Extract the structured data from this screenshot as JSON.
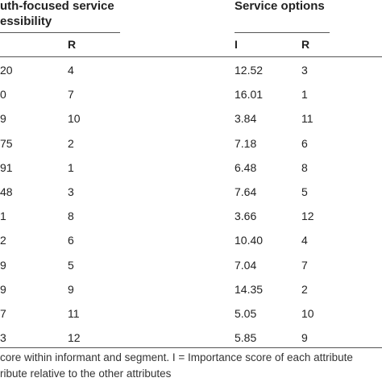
{
  "table": {
    "group_left": {
      "title_line1": "uth-focused service",
      "title_line2": "essibility",
      "col_i": "",
      "col_r": "R"
    },
    "group_right": {
      "title": "Service options",
      "col_i": "I",
      "col_r": "R"
    },
    "rows": [
      {
        "left_i": "20",
        "left_r": "4",
        "right_i": "12.52",
        "right_r": "3"
      },
      {
        "left_i": "0",
        "left_r": "7",
        "right_i": "16.01",
        "right_r": "1"
      },
      {
        "left_i": "9",
        "left_r": "10",
        "right_i": "3.84",
        "right_r": "11"
      },
      {
        "left_i": "75",
        "left_r": "2",
        "right_i": "7.18",
        "right_r": "6"
      },
      {
        "left_i": "91",
        "left_r": "1",
        "right_i": "6.48",
        "right_r": "8"
      },
      {
        "left_i": "48",
        "left_r": "3",
        "right_i": "7.64",
        "right_r": "5"
      },
      {
        "left_i": "1",
        "left_r": "8",
        "right_i": "3.66",
        "right_r": "12"
      },
      {
        "left_i": "2",
        "left_r": "6",
        "right_i": "10.40",
        "right_r": "4"
      },
      {
        "left_i": "9",
        "left_r": "5",
        "right_i": "7.04",
        "right_r": "7"
      },
      {
        "left_i": "9",
        "left_r": "9",
        "right_i": "14.35",
        "right_r": "2"
      },
      {
        "left_i": "7",
        "left_r": "11",
        "right_i": "5.05",
        "right_r": "10"
      },
      {
        "left_i": "3",
        "left_r": "12",
        "right_i": "5.85",
        "right_r": "9"
      }
    ]
  },
  "footnote": {
    "line1": "core within informant and segment. I = Importance score of each attribute",
    "line2": "ribute relative to the other attributes"
  }
}
